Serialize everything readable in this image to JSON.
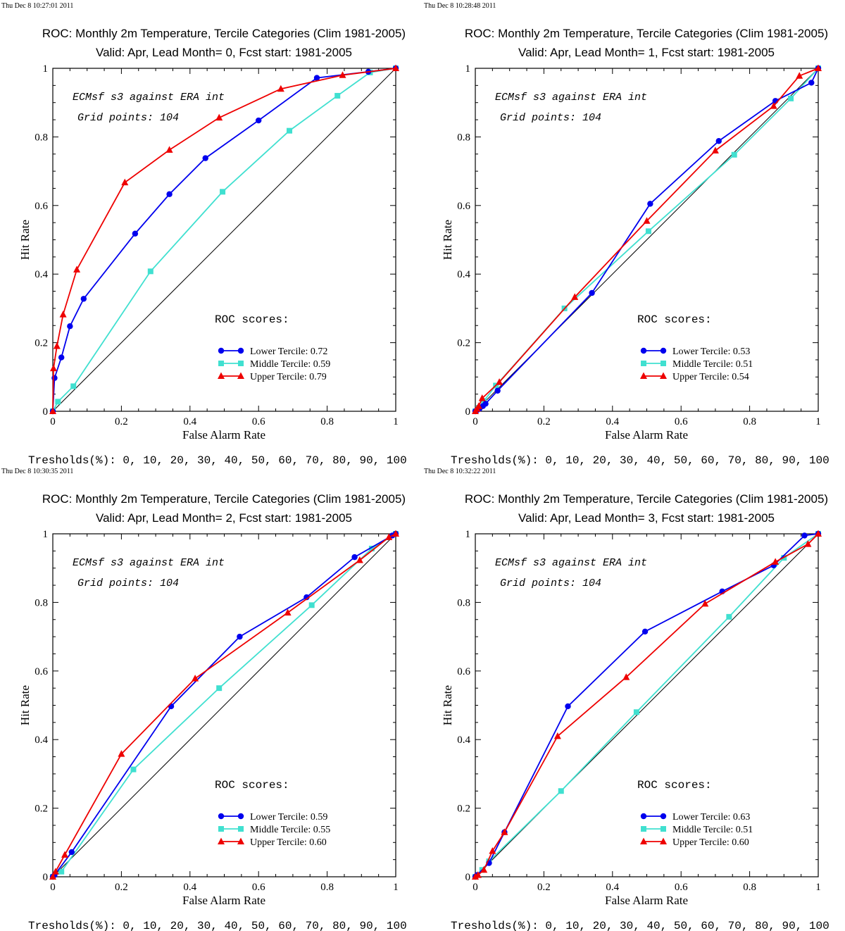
{
  "colors": {
    "lower": "#0000ee",
    "middle": "#40e0d0",
    "upper": "#ee0000",
    "diagonal": "#000000"
  },
  "chart_data": [
    {
      "type": "line",
      "timestamp": "Thu Dec  8 10:27:01 2011",
      "title": "ROC: Monthly 2m Temperature, Tercile Categories (Clim 1981-2005)",
      "subtitle": "Valid: Apr, Lead Month= 0, Fcst start: 1981-2005",
      "xlabel": "False Alarm Rate",
      "ylabel": "Hit Rate",
      "xlim": [
        0,
        1
      ],
      "ylim": [
        0,
        1
      ],
      "xticks": [
        "0",
        "0.2",
        "0.4",
        "0.6",
        "0.8",
        "1"
      ],
      "yticks": [
        "0",
        "0.2",
        "0.4",
        "0.6",
        "0.8",
        "1"
      ],
      "annotation1": "ECMsf s3 against ERA int",
      "annotation2": "Grid points:  104",
      "scores_title": "ROC scores:",
      "thresholds": "Tresholds(%): 0, 10, 20, 30, 40, 50, 60, 70, 80, 90, 100",
      "series": [
        {
          "name": "Lower Tercile: 0.72",
          "marker": "circle",
          "x": [
            0,
            0.005,
            0.025,
            0.05,
            0.09,
            0.24,
            0.34,
            0.445,
            0.6,
            0.77,
            0.92,
            1
          ],
          "y": [
            0,
            0.097,
            0.157,
            0.248,
            0.328,
            0.518,
            0.633,
            0.738,
            0.848,
            0.972,
            0.99,
            1
          ]
        },
        {
          "name": "Middle Tercile: 0.59",
          "marker": "square",
          "x": [
            0,
            0.015,
            0.06,
            0.285,
            0.495,
            0.69,
            0.83,
            0.925,
            1
          ],
          "y": [
            0,
            0.028,
            0.073,
            0.408,
            0.64,
            0.818,
            0.92,
            0.988,
            1
          ]
        },
        {
          "name": "Upper Tercile: 0.79",
          "marker": "triangle",
          "x": [
            0,
            0.002,
            0.012,
            0.03,
            0.07,
            0.21,
            0.34,
            0.485,
            0.665,
            0.845,
            1
          ],
          "y": [
            0,
            0.125,
            0.19,
            0.282,
            0.413,
            0.667,
            0.762,
            0.856,
            0.94,
            0.98,
            1
          ]
        }
      ]
    },
    {
      "type": "line",
      "timestamp": "Thu Dec  8 10:28:48 2011",
      "title": "ROC: Monthly 2m Temperature, Tercile Categories (Clim 1981-2005)",
      "subtitle": "Valid: Apr, Lead Month= 1, Fcst start: 1981-2005",
      "xlabel": "False Alarm Rate",
      "ylabel": "Hit Rate",
      "xlim": [
        0,
        1
      ],
      "ylim": [
        0,
        1
      ],
      "xticks": [
        "0",
        "0.2",
        "0.4",
        "0.6",
        "0.8",
        "1"
      ],
      "yticks": [
        "0",
        "0.2",
        "0.4",
        "0.6",
        "0.8",
        "1"
      ],
      "annotation1": "ECMsf s3 against ERA int",
      "annotation2": "Grid points:  104",
      "scores_title": "ROC scores:",
      "thresholds": "Tresholds(%): 0, 10, 20, 30, 40, 50, 60, 70, 80, 90, 100",
      "series": [
        {
          "name": "Lower Tercile: 0.53",
          "marker": "circle",
          "x": [
            0,
            0.005,
            0.012,
            0.022,
            0.03,
            0.065,
            0.34,
            0.51,
            0.71,
            0.875,
            0.98,
            1
          ],
          "y": [
            0,
            0.003,
            0.007,
            0.015,
            0.022,
            0.06,
            0.345,
            0.605,
            0.788,
            0.905,
            0.958,
            1
          ]
        },
        {
          "name": "Middle Tercile: 0.51",
          "marker": "square",
          "x": [
            0,
            0.01,
            0.025,
            0.06,
            0.26,
            0.505,
            0.755,
            0.92,
            1
          ],
          "y": [
            0,
            0.01,
            0.03,
            0.075,
            0.3,
            0.525,
            0.748,
            0.912,
            1
          ]
        },
        {
          "name": "Upper Tercile: 0.54",
          "marker": "triangle",
          "x": [
            0,
            0.005,
            0.01,
            0.02,
            0.07,
            0.29,
            0.5,
            0.7,
            0.87,
            0.945,
            1
          ],
          "y": [
            0,
            0.007,
            0.015,
            0.038,
            0.085,
            0.333,
            0.555,
            0.76,
            0.89,
            0.978,
            1
          ]
        }
      ]
    },
    {
      "type": "line",
      "timestamp": "Thu Dec  8 10:30:35 2011",
      "title": "ROC: Monthly 2m Temperature, Tercile Categories (Clim 1981-2005)",
      "subtitle": "Valid: Apr, Lead Month= 2, Fcst start: 1981-2005",
      "xlabel": "False Alarm Rate",
      "ylabel": "Hit Rate",
      "xlim": [
        0,
        1
      ],
      "ylim": [
        0,
        1
      ],
      "xticks": [
        "0",
        "0.2",
        "0.4",
        "0.6",
        "0.8",
        "1"
      ],
      "yticks": [
        "0",
        "0.2",
        "0.4",
        "0.6",
        "0.8",
        "1"
      ],
      "annotation1": "ECMsf s3 against ERA int",
      "annotation2": "Grid points:  104",
      "scores_title": "ROC scores:",
      "thresholds": "Tresholds(%): 0, 10, 20, 30, 40, 50, 60, 70, 80, 90, 100",
      "series": [
        {
          "name": "Lower Tercile: 0.59",
          "marker": "circle",
          "x": [
            0,
            0.005,
            0.055,
            0.345,
            0.545,
            0.74,
            0.88,
            0.99,
            1
          ],
          "y": [
            0,
            0.005,
            0.072,
            0.497,
            0.7,
            0.815,
            0.932,
            0.995,
            1
          ]
        },
        {
          "name": "Middle Tercile: 0.55",
          "marker": "square",
          "x": [
            0,
            0.025,
            0.235,
            0.485,
            0.755,
            0.93,
            1
          ],
          "y": [
            0,
            0.015,
            0.313,
            0.55,
            0.792,
            0.957,
            1
          ]
        },
        {
          "name": "Upper Tercile: 0.60",
          "marker": "triangle",
          "x": [
            0,
            0.008,
            0.035,
            0.2,
            0.415,
            0.685,
            0.895,
            0.98,
            1
          ],
          "y": [
            0,
            0.015,
            0.064,
            0.358,
            0.578,
            0.77,
            0.923,
            0.99,
            1
          ]
        }
      ]
    },
    {
      "type": "line",
      "timestamp": "Thu Dec  8 10:32:22 2011",
      "title": "ROC: Monthly 2m Temperature, Tercile Categories (Clim 1981-2005)",
      "subtitle": "Valid: Apr, Lead Month= 3, Fcst start: 1981-2005",
      "xlabel": "False Alarm Rate",
      "ylabel": "Hit Rate",
      "xlim": [
        0,
        1
      ],
      "ylim": [
        0,
        1
      ],
      "xticks": [
        "0",
        "0.2",
        "0.4",
        "0.6",
        "0.8",
        "1"
      ],
      "yticks": [
        "0",
        "0.2",
        "0.4",
        "0.6",
        "0.8",
        "1"
      ],
      "annotation1": "ECMsf s3 against ERA int",
      "annotation2": "Grid points:  104",
      "scores_title": "ROC scores:",
      "thresholds": "Tresholds(%): 0, 10, 20, 30, 40, 50, 60, 70, 80, 90, 100",
      "series": [
        {
          "name": "Lower Tercile: 0.63",
          "marker": "circle",
          "x": [
            0,
            0.005,
            0.04,
            0.085,
            0.27,
            0.495,
            0.72,
            0.87,
            0.96,
            1
          ],
          "y": [
            0,
            0.005,
            0.04,
            0.13,
            0.497,
            0.715,
            0.832,
            0.908,
            0.995,
            1
          ]
        },
        {
          "name": "Middle Tercile: 0.51",
          "marker": "square",
          "x": [
            0,
            0.02,
            0.04,
            0.25,
            0.47,
            0.74,
            0.9,
            1
          ],
          "y": [
            0,
            0.02,
            0.045,
            0.25,
            0.48,
            0.758,
            0.93,
            1
          ]
        },
        {
          "name": "Upper Tercile: 0.60",
          "marker": "triangle",
          "x": [
            0,
            0.008,
            0.025,
            0.05,
            0.085,
            0.24,
            0.44,
            0.67,
            0.875,
            0.97,
            1
          ],
          "y": [
            0,
            0.005,
            0.02,
            0.075,
            0.13,
            0.41,
            0.582,
            0.796,
            0.918,
            0.97,
            1
          ]
        }
      ]
    }
  ]
}
